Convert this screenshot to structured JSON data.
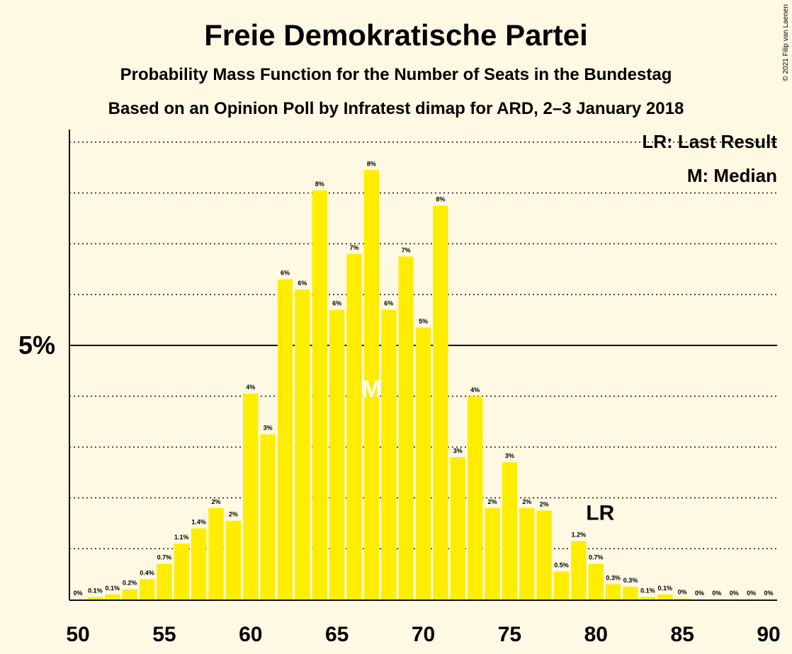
{
  "title": "Freie Demokratische Partei",
  "subtitle": "Probability Mass Function for the Number of Seats in the Bundestag",
  "subtitle2": "Based on an Opinion Poll by Infratest dimap for ARD, 2–3 January 2018",
  "copyright": "© 2021 Filip van Laenen",
  "legend": {
    "lr": "LR: Last Result",
    "median": "M: Median"
  },
  "colors": {
    "bar": "#FFED00",
    "background": "#FFF9E3",
    "text": "#111111"
  },
  "chart_data": {
    "type": "bar",
    "x": [
      51,
      52,
      53,
      54,
      55,
      56,
      57,
      58,
      59,
      60,
      61,
      62,
      63,
      64,
      65,
      66,
      67,
      68,
      69,
      70,
      71,
      72,
      73,
      74,
      75,
      76,
      77,
      78,
      79,
      80,
      81,
      82,
      83,
      84,
      85,
      86,
      87,
      88,
      89,
      90
    ],
    "values": [
      0.05,
      0.1,
      0.2,
      0.4,
      0.7,
      1.1,
      1.4,
      1.8,
      1.55,
      4.05,
      3.25,
      6.3,
      6.1,
      8.05,
      5.7,
      6.8,
      8.45,
      5.7,
      6.75,
      5.35,
      7.75,
      2.8,
      4.0,
      1.8,
      2.7,
      1.8,
      1.75,
      0.55,
      1.15,
      0.7,
      0.3,
      0.25,
      0.05,
      0.1,
      0.02,
      0,
      0,
      0,
      0,
      0
    ],
    "labels": [
      "0%",
      "0.1%",
      "0.1%",
      "0.2%",
      "0.4%",
      "0.7%",
      "1.1%",
      "1.4%",
      "2%",
      "2%",
      "4%",
      "3%",
      "6%",
      "6%",
      "8%",
      "6%",
      "7%",
      "8%",
      "6%",
      "7%",
      "5%",
      "8%",
      "3%",
      "4%",
      "2%",
      "3%",
      "2%",
      "2%",
      "0.5%",
      "1.2%",
      "0.7%",
      "0.3%",
      "0.3%",
      "0.1%",
      "0.1%",
      "0%",
      "0%",
      "0%",
      "0%",
      "0%",
      "0%"
    ],
    "label_x": [
      50,
      51,
      52,
      53,
      54,
      55,
      56,
      57,
      58,
      59,
      60,
      61,
      62,
      63,
      64,
      65,
      66,
      67,
      68,
      69,
      70,
      71,
      72,
      73,
      74,
      75,
      76,
      77,
      78,
      79,
      80,
      81,
      82,
      83,
      84,
      85,
      86,
      87,
      88,
      89,
      90
    ],
    "xticks": [
      50,
      55,
      60,
      65,
      70,
      75,
      80,
      85,
      90
    ],
    "xlim": [
      50,
      90
    ],
    "ylim": [
      0,
      9.25
    ],
    "ytick_labeled": {
      "value": 5,
      "label": "5%"
    },
    "grid": "dotted horizontal every 1%, solid at 5%",
    "median": {
      "seat": 67,
      "label": "M"
    },
    "last_result": {
      "seat": 80,
      "label": "LR"
    },
    "legend_position": "top-right"
  }
}
